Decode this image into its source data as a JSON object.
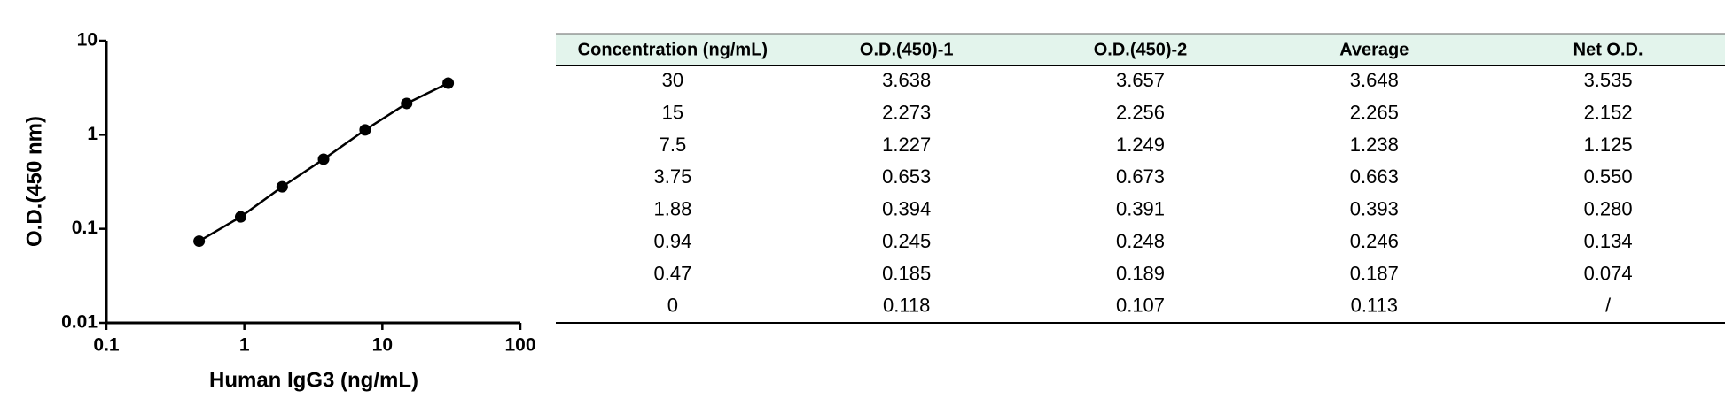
{
  "chart_data": {
    "type": "line",
    "xlabel": "Human IgG3 (ng/mL)",
    "ylabel": "O.D.(450 nm)",
    "xscale": "log",
    "yscale": "log",
    "x": [
      0.47,
      0.94,
      1.88,
      3.75,
      7.5,
      15,
      30
    ],
    "series": [
      {
        "color": "#000000",
        "values": [
          0.074,
          0.134,
          0.28,
          0.55,
          1.125,
          2.152,
          3.535
        ]
      }
    ],
    "xlim": [
      0.1,
      100
    ],
    "xticks": [
      0.1,
      1,
      10,
      100
    ],
    "ylim": [
      0.01,
      10
    ],
    "yticks": [
      0.01,
      0.1,
      1,
      10
    ]
  },
  "table": {
    "columns": [
      "Concentration (ng/mL)",
      "O.D.(450)-1",
      "O.D.(450)-2",
      "Average",
      "Net O.D."
    ],
    "rows": [
      [
        "30",
        "3.638",
        "3.657",
        "3.648",
        "3.535"
      ],
      [
        "15",
        "2.273",
        "2.256",
        "2.265",
        "2.152"
      ],
      [
        "7.5",
        "1.227",
        "1.249",
        "1.238",
        "1.125"
      ],
      [
        "3.75",
        "0.653",
        "0.673",
        "0.663",
        "0.550"
      ],
      [
        "1.88",
        "0.394",
        "0.391",
        "0.393",
        "0.280"
      ],
      [
        "0.94",
        "0.245",
        "0.248",
        "0.246",
        "0.134"
      ],
      [
        "0.47",
        "0.185",
        "0.189",
        "0.187",
        "0.074"
      ],
      [
        "0",
        "0.118",
        "0.107",
        "0.113",
        "/"
      ]
    ]
  }
}
